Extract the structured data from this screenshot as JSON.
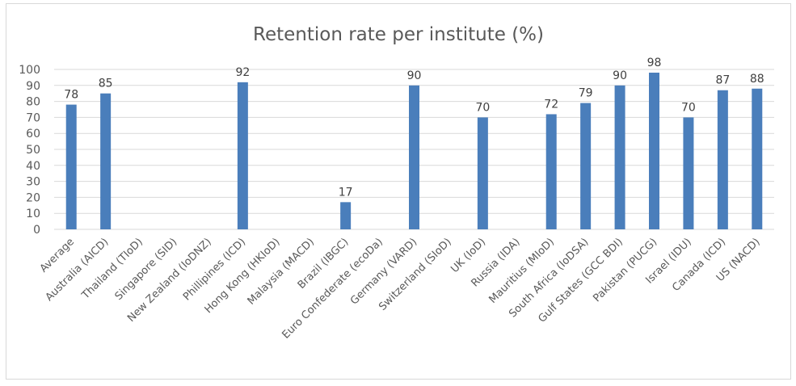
{
  "chart_data": {
    "type": "bar",
    "title": "Retention rate per institute (%)",
    "xlabel": "",
    "ylabel": "",
    "ylim": [
      0,
      100
    ],
    "yticks": [
      0,
      10,
      20,
      30,
      40,
      50,
      60,
      70,
      80,
      90,
      100
    ],
    "grid": true,
    "legend": "none",
    "bar_color": "#4a7ebb",
    "categories": [
      "Average",
      "Australia (AICD)",
      "Thailand (TIoD)",
      "Singapore (SID)",
      "New Zealand (IoDNZ)",
      "Phillipines (ICD)",
      "Hong Kong (HKIoD)",
      "Malaysia (MACD)",
      "Brazil (IBGC)",
      "Euro Confederate (ecoDa)",
      "Germany (VARD)",
      "Switzerland (SIoD)",
      "UK (IoD)",
      "Russia (IDA)",
      "Mauritius (MIoD)",
      "South Africa (IoDSA)",
      "Gulf States (GCC BDI)",
      "Pakistan (PUCG)",
      "Israel (IDU)",
      "Canada (ICD)",
      "US (NACD)"
    ],
    "values": [
      78,
      85,
      null,
      null,
      null,
      92,
      null,
      null,
      17,
      null,
      90,
      null,
      70,
      null,
      72,
      79,
      90,
      98,
      70,
      87,
      88
    ]
  }
}
